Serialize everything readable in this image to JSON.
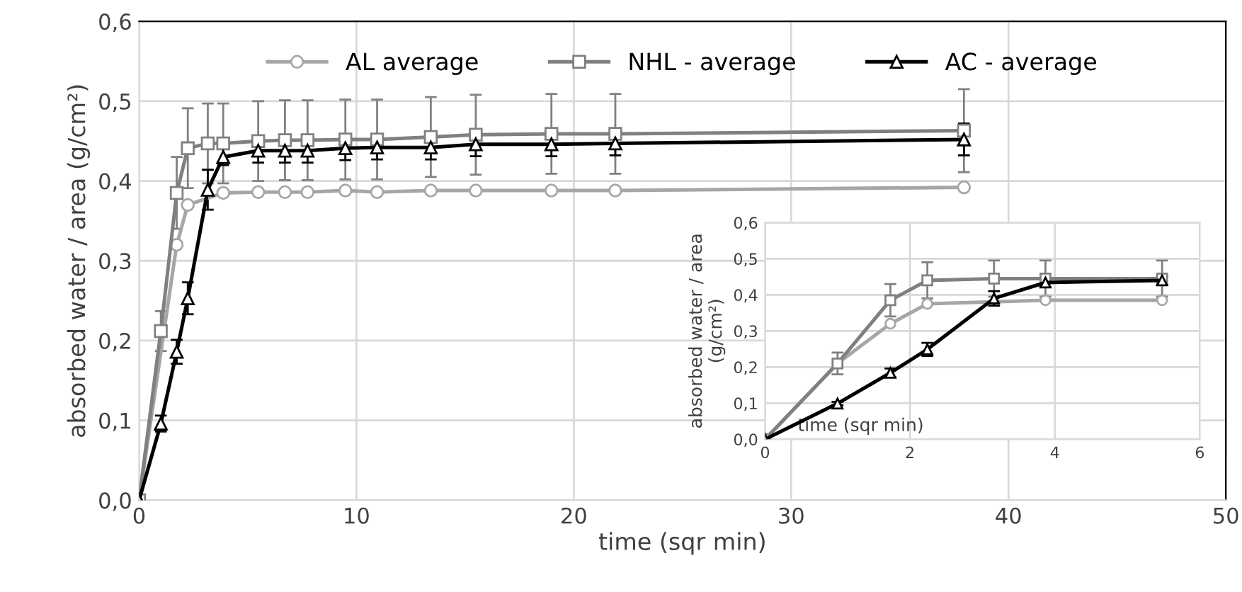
{
  "chart_data": [
    {
      "type": "line",
      "xlabel": "time (sqr min)",
      "ylabel": "absorbed water / area (g/cm²)",
      "x": [
        0,
        1,
        1.73,
        2.24,
        3.16,
        3.87,
        5.48,
        6.71,
        7.75,
        9.49,
        10.95,
        13.42,
        15.49,
        18.97,
        21.91,
        37.95
      ],
      "series": [
        {
          "name": "AL average",
          "color": "#a6a6a6",
          "marker": "circle",
          "values": [
            0,
            null,
            0.32,
            0.37,
            null,
            0.385,
            0.386,
            0.386,
            0.386,
            0.388,
            0.386,
            0.388,
            0.388,
            0.388,
            0.388,
            0.392
          ]
        },
        {
          "name": "NHL - average",
          "color": "#808080",
          "marker": "square",
          "values": [
            0,
            0.212,
            0.385,
            0.441,
            0.447,
            0.447,
            0.45,
            0.451,
            0.451,
            0.452,
            0.452,
            0.455,
            0.458,
            0.459,
            0.459,
            0.463
          ],
          "errors": [
            null,
            0.025,
            0.045,
            0.05,
            0.05,
            0.05,
            0.05,
            0.05,
            0.05,
            0.05,
            0.05,
            0.05,
            0.05,
            0.05,
            0.05,
            0.052
          ]
        },
        {
          "name": "AC - average",
          "color": "#000000",
          "marker": "triangle",
          "values": [
            0,
            0.096,
            0.186,
            0.253,
            0.389,
            0.43,
            0.438,
            0.438,
            0.438,
            0.441,
            0.442,
            0.442,
            0.446,
            0.446,
            0.447,
            0.452
          ],
          "errors": [
            null,
            0.01,
            0.015,
            0.02,
            0.025,
            0.01,
            0.015,
            0.015,
            0.015,
            0.015,
            0.015,
            0.015,
            0.015,
            0.015,
            0.015,
            0.02
          ]
        }
      ],
      "xlim": [
        0,
        50
      ],
      "xticks": [
        0,
        10,
        20,
        30,
        40,
        50
      ],
      "ylim": [
        0,
        0.6
      ],
      "yticks": [
        {
          "value": 0,
          "label": "0,0"
        },
        {
          "value": 0.1,
          "label": "0,1"
        },
        {
          "value": 0.2,
          "label": "0,2"
        },
        {
          "value": 0.3,
          "label": "0,3"
        },
        {
          "value": 0.4,
          "label": "0,4"
        },
        {
          "value": 0.5,
          "label": "0,5"
        },
        {
          "value": 0.6,
          "label": "0,6"
        }
      ],
      "grid": true,
      "legend": "top"
    },
    {
      "type": "line",
      "xlabel": "time (sqr min)",
      "ylabel": "absorbed water / area\n(g/cm²)",
      "x": [
        0,
        1,
        1.73,
        2.24,
        3.16,
        3.87,
        5.48
      ],
      "series": [
        {
          "color": "#a6a6a6",
          "marker": "circle",
          "values": [
            0,
            0.21,
            0.32,
            0.375,
            null,
            0.385,
            0.385
          ]
        },
        {
          "color": "#808080",
          "marker": "square",
          "values": [
            0,
            0.21,
            0.385,
            0.44,
            0.445,
            0.445,
            0.445
          ],
          "errors": [
            null,
            0.03,
            0.045,
            0.05,
            0.05,
            0.05,
            0.05
          ]
        },
        {
          "color": "#000000",
          "marker": "triangle",
          "values": [
            0,
            0.099,
            0.184,
            0.249,
            0.39,
            0.434,
            0.44
          ],
          "errors": [
            null,
            0.005,
            0.012,
            0.018,
            0.02,
            0.012,
            0.012
          ]
        }
      ],
      "xlim": [
        0,
        6
      ],
      "xticks": [
        0,
        2,
        4,
        6
      ],
      "ylim": [
        0,
        0.6
      ],
      "yticks": [
        {
          "value": 0,
          "label": "0,0"
        },
        {
          "value": 0.1,
          "label": "0,1"
        },
        {
          "value": 0.2,
          "label": "0,2"
        },
        {
          "value": 0.3,
          "label": "0,3"
        },
        {
          "value": 0.4,
          "label": "0,4"
        },
        {
          "value": 0.5,
          "label": "0,5"
        },
        {
          "value": 0.6,
          "label": "0,6"
        }
      ],
      "grid": true
    }
  ]
}
